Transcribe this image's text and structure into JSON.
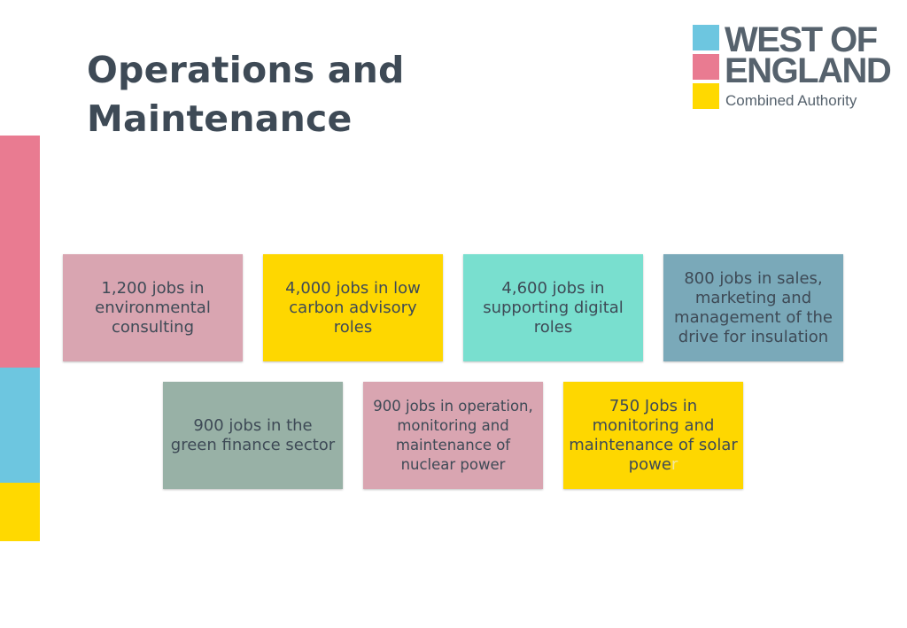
{
  "title": {
    "line1": "Operations and",
    "line2": "Maintenance"
  },
  "colors": {
    "pink": "#e97b91",
    "blue": "#6dc6e0",
    "yellow": "#ffd900",
    "title_text": "#3e4a56",
    "card_pink": "#d9a5b1",
    "card_yellow": "#fed700",
    "card_teal": "#79dfcf",
    "card_steel": "#7aa9b9",
    "card_sage": "#98b1a6"
  },
  "logo": {
    "line1": "WEST OF",
    "line2": "ENGLAND",
    "line3": "Combined Authority"
  },
  "cards": [
    {
      "text": "1,200 jobs in environmental consulting",
      "color": "#d9a5b1"
    },
    {
      "text": "4,000 jobs in low carbon advisory roles",
      "color": "#fed700"
    },
    {
      "text": "4,600 jobs in supporting digital roles",
      "color": "#79dfcf"
    },
    {
      "text": "800 jobs in sales, marketing and management of the drive for insulation",
      "color": "#7aa9b9"
    },
    {
      "text": "900 jobs in the green finance sector",
      "color": "#98b1a6"
    },
    {
      "text": "900 jobs in operation, monitoring and maintenance of nuclear power",
      "color": "#d9a5b1"
    },
    {
      "text_main": "750 Jobs in monitoring and maintenance of solar powe",
      "text_last": "r",
      "color": "#fed700"
    }
  ]
}
